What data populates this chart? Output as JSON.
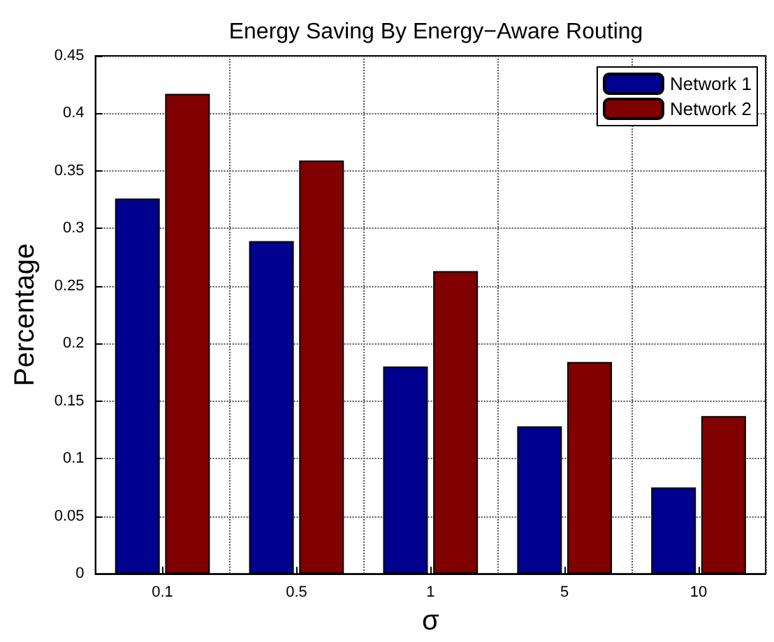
{
  "chart_data": {
    "type": "bar",
    "title": "Energy Saving By Energy−Aware Routing",
    "xlabel": "σ",
    "ylabel": "Percentage",
    "categories": [
      "0.1",
      "0.5",
      "1",
      "5",
      "10"
    ],
    "series": [
      {
        "name": "Network 1",
        "color": "#00008f",
        "values": [
          0.326,
          0.289,
          0.18,
          0.128,
          0.075
        ]
      },
      {
        "name": "Network 2",
        "color": "#800000",
        "values": [
          0.417,
          0.359,
          0.263,
          0.184,
          0.137
        ]
      }
    ],
    "ylim": [
      0,
      0.45
    ],
    "yticks": [
      0,
      0.05,
      0.1,
      0.15,
      0.2,
      0.25,
      0.3,
      0.35,
      0.4,
      0.45
    ],
    "grid": true,
    "legend": "top right",
    "line_style": "dotted"
  }
}
